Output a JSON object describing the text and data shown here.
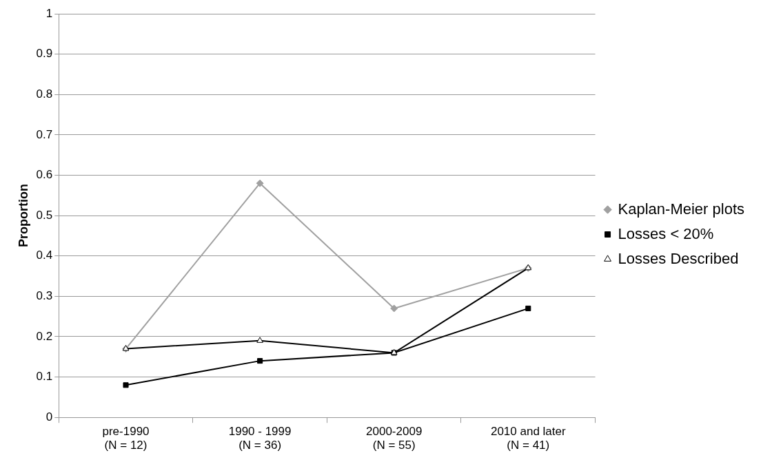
{
  "chart_data": {
    "type": "line",
    "ylabel": "Proportion",
    "categories": [
      "pre-1990\n(N = 12)",
      "1990 - 1999\n(N = 36)",
      "2000-2009\n(N = 55)",
      "2010 and later\n(N = 41)"
    ],
    "series": [
      {
        "name": "Kaplan-Meier plots",
        "color": "#a0a0a0",
        "marker": "diamond",
        "values": [
          0.17,
          0.58,
          0.27,
          0.37
        ]
      },
      {
        "name": "Losses < 20%",
        "color": "#000000",
        "marker": "square",
        "values": [
          0.08,
          0.14,
          0.16,
          0.27
        ]
      },
      {
        "name": "Losses Described",
        "color": "#000000",
        "marker": "triangle",
        "values": [
          0.17,
          0.19,
          0.16,
          0.37
        ]
      }
    ],
    "ylim": [
      0,
      1
    ],
    "yticks": [
      0,
      0.1,
      0.2,
      0.3,
      0.4,
      0.5,
      0.6,
      0.7,
      0.8,
      0.9,
      1
    ],
    "grid": "y",
    "legend": "right",
    "line_style": "solid"
  }
}
